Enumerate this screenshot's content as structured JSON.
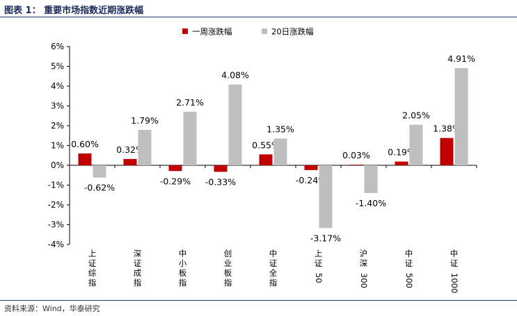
{
  "header": {
    "title": "图表 1：  重要市场指数近期涨跌幅"
  },
  "footer": {
    "source": "资料来源：Wind，华泰研究"
  },
  "chart_data": {
    "type": "bar",
    "categories": [
      [
        "上",
        "证",
        "综",
        "指"
      ],
      [
        "深",
        "证",
        "成",
        "指"
      ],
      [
        "中",
        "小",
        "板",
        "指"
      ],
      [
        "创",
        "业",
        "板",
        "指"
      ],
      [
        "中",
        "证",
        "全",
        "指"
      ],
      [
        "上",
        "证",
        "50"
      ],
      [
        "沪",
        "深",
        "300"
      ],
      [
        "中",
        "证",
        "500"
      ],
      [
        "中",
        "证",
        "1000"
      ]
    ],
    "series": [
      {
        "name": "一周涨跌幅",
        "color": "#c00000",
        "values": [
          0.6,
          0.32,
          -0.29,
          -0.33,
          0.55,
          -0.24,
          0.03,
          0.19,
          1.38
        ],
        "labels": [
          "0.60%",
          "0.32%",
          "-0.29%",
          "-0.33%",
          "0.55%",
          "-0.24%",
          "0.03%",
          "0.19%",
          "1.38%"
        ]
      },
      {
        "name": "20日涨跌幅",
        "color": "#bfbfbf",
        "values": [
          -0.62,
          1.79,
          2.71,
          4.08,
          1.35,
          -3.17,
          -1.4,
          2.05,
          4.91
        ],
        "labels": [
          "-0.62%",
          "1.79%",
          "2.71%",
          "4.08%",
          "1.35%",
          "-3.17%",
          "-1.40%",
          "2.05%",
          "4.91%"
        ]
      }
    ],
    "ylim": [
      -4,
      6
    ],
    "yticks": [
      6,
      5,
      4,
      3,
      2,
      1,
      0,
      -1,
      -2,
      -3,
      -4
    ],
    "ytick_labels": [
      "6%",
      "5%",
      "4%",
      "3%",
      "2%",
      "1%",
      "0%",
      "-1%",
      "-2%",
      "-3%",
      "-4%"
    ],
    "legend_position": "top-center",
    "grid": false
  }
}
